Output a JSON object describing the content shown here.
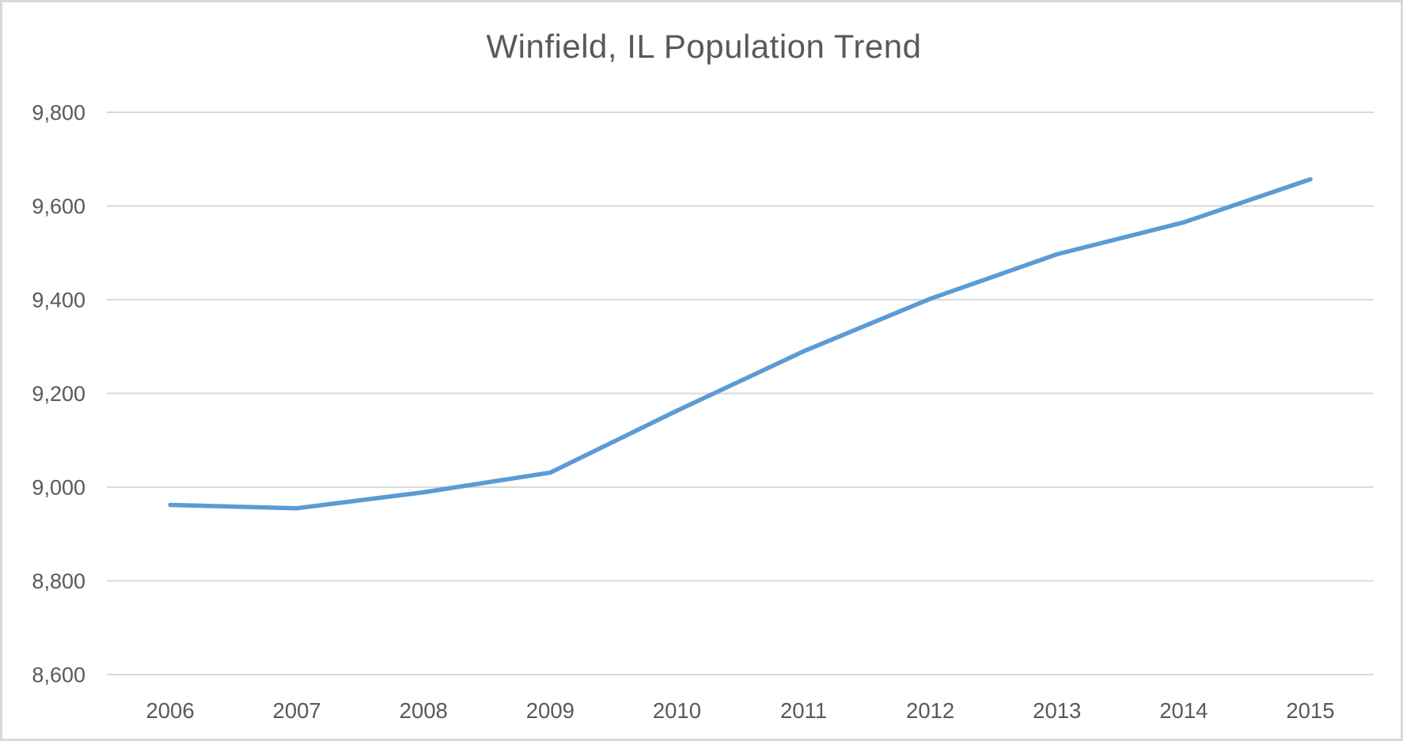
{
  "chart_data": {
    "type": "line",
    "title": "Winfield, IL Population Trend",
    "categories": [
      "2006",
      "2007",
      "2008",
      "2009",
      "2010",
      "2011",
      "2012",
      "2013",
      "2014",
      "2015"
    ],
    "values": [
      8962,
      8955,
      8989,
      9031,
      9163,
      9290,
      9402,
      9497,
      9565,
      9657
    ],
    "xlabel": "",
    "ylabel": "",
    "ylim": [
      8600,
      9800
    ],
    "yticks": [
      8600,
      8800,
      9000,
      9200,
      9400,
      9600,
      9800
    ],
    "ytick_labels": [
      "8,600",
      "8,800",
      "9,000",
      "9,200",
      "9,400",
      "9,600",
      "9,800"
    ],
    "grid": true,
    "legend": "none",
    "line_color": "#5b9bd5",
    "grid_color": "#d9d9d9",
    "text_color": "#595959",
    "background": "#ffffff",
    "border_color": "#d9d9d9"
  }
}
